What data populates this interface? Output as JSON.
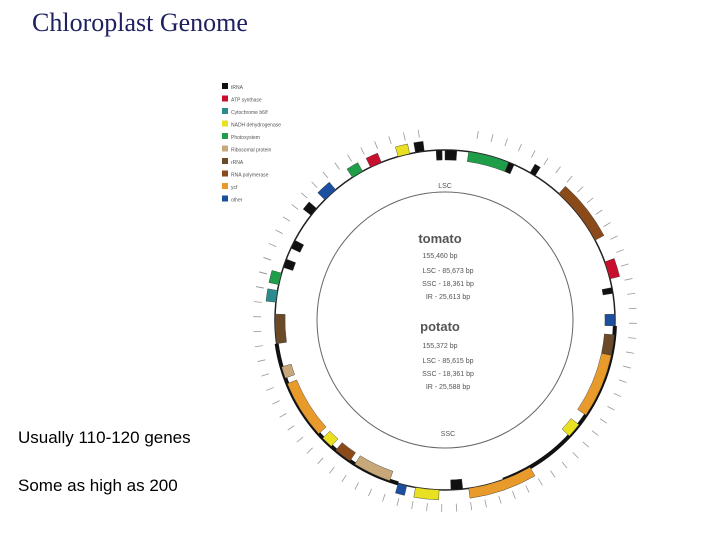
{
  "title": "Chloroplast Genome",
  "bullets": [
    "Usually 110-120 genes",
    "Some as high as 200"
  ],
  "legend": [
    {
      "label": "tRNA",
      "color": "#111111"
    },
    {
      "label": "ATP synthase",
      "color": "#c8102e"
    },
    {
      "label": "Cytochrome b6/f",
      "color": "#2a8c8c"
    },
    {
      "label": "NADH dehydrogenase",
      "color": "#e8e020"
    },
    {
      "label": "Photosystem",
      "color": "#1f9e4a"
    },
    {
      "label": "Ribosomal protein",
      "color": "#c8a878"
    },
    {
      "label": "rRNA",
      "color": "#6b4a2a"
    },
    {
      "label": "RNA polymerase",
      "color": "#8b4a1a"
    },
    {
      "label": "ycf",
      "color": "#e89a2a"
    },
    {
      "label": "other",
      "color": "#1c4fa0"
    }
  ],
  "map": {
    "lsc": "LSC",
    "ssc": "SSC",
    "tomato": {
      "name": "tomato",
      "size": "155,460 bp",
      "lines": [
        "LSC - 85,673 bp",
        "SSC - 18,361 bp",
        "IR - 25,613 bp"
      ]
    },
    "potato": {
      "name": "potato",
      "size": "155,372 bp",
      "lines": [
        "LSC - 85,615 bp",
        "SSC - 18,361 bp",
        "IR - 25,588 bp"
      ]
    }
  }
}
